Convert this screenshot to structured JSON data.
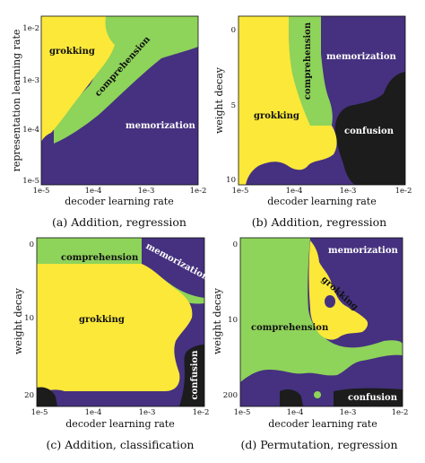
{
  "colors": {
    "memorization": "#45317f",
    "comprehension": "#8ed35a",
    "grokking": "#fbe839",
    "confusion": "#1c1c1c"
  },
  "chart_data": [
    {
      "type": "heatmap",
      "caption": "(a) Addition, regression",
      "xlabel": "decoder learning rate",
      "ylabel": "representation learning rate",
      "xticks": [
        "1e-5",
        "1e-4",
        "1e-3",
        "1e-2"
      ],
      "yticks": [
        "1e-2",
        "1e-3",
        "1e-4",
        "1e-5"
      ],
      "xscale": "log",
      "yscale": "log",
      "regions": [
        {
          "name": "grokking",
          "color": "#fbe839",
          "label": "grokking"
        },
        {
          "name": "comprehension",
          "color": "#8ed35a",
          "label": "comprehension"
        },
        {
          "name": "memorization",
          "color": "#45317f",
          "label": "memorization"
        }
      ]
    },
    {
      "type": "heatmap",
      "caption": "(b) Addition, regression",
      "xlabel": "decoder learning rate",
      "ylabel": "weight decay",
      "xticks": [
        "1e-5",
        "1e-4",
        "1e-3",
        "1e-2"
      ],
      "yticks": [
        "0",
        "5",
        "10"
      ],
      "xscale": "log",
      "regions": [
        {
          "name": "grokking",
          "color": "#fbe839",
          "label": "grokking"
        },
        {
          "name": "comprehension",
          "color": "#8ed35a",
          "label": "comprehension"
        },
        {
          "name": "memorization",
          "color": "#45317f",
          "label": "memorization"
        },
        {
          "name": "confusion",
          "color": "#1c1c1c",
          "label": "confusion"
        }
      ]
    },
    {
      "type": "heatmap",
      "caption": "(c) Addition, classification",
      "xlabel": "decoder learning rate",
      "ylabel": "weight decay",
      "xticks": [
        "1e-5",
        "1e-4",
        "1e-3",
        "1e-2"
      ],
      "yticks": [
        "0",
        "10",
        "20"
      ],
      "xscale": "log",
      "regions": [
        {
          "name": "grokking",
          "color": "#fbe839",
          "label": "grokking"
        },
        {
          "name": "comprehension",
          "color": "#8ed35a",
          "label": "comprehension"
        },
        {
          "name": "memorization",
          "color": "#45317f",
          "label": "memorization"
        },
        {
          "name": "confusion",
          "color": "#1c1c1c",
          "label": "confusion"
        }
      ]
    },
    {
      "type": "heatmap",
      "caption": "(d) Permutation, regression",
      "xlabel": "decoder learning rate",
      "ylabel": "weight decay",
      "xticks": [
        "1e-5",
        "1e-4",
        "1e-3",
        "1e-2"
      ],
      "yticks": [
        "0",
        "10",
        "200"
      ],
      "xscale": "log",
      "regions": [
        {
          "name": "grokking",
          "color": "#fbe839",
          "label": "grokking"
        },
        {
          "name": "comprehension",
          "color": "#8ed35a",
          "label": "comprehension"
        },
        {
          "name": "memorization",
          "color": "#45317f",
          "label": "memorization"
        },
        {
          "name": "confusion",
          "color": "#1c1c1c",
          "label": "confusion"
        }
      ]
    }
  ]
}
